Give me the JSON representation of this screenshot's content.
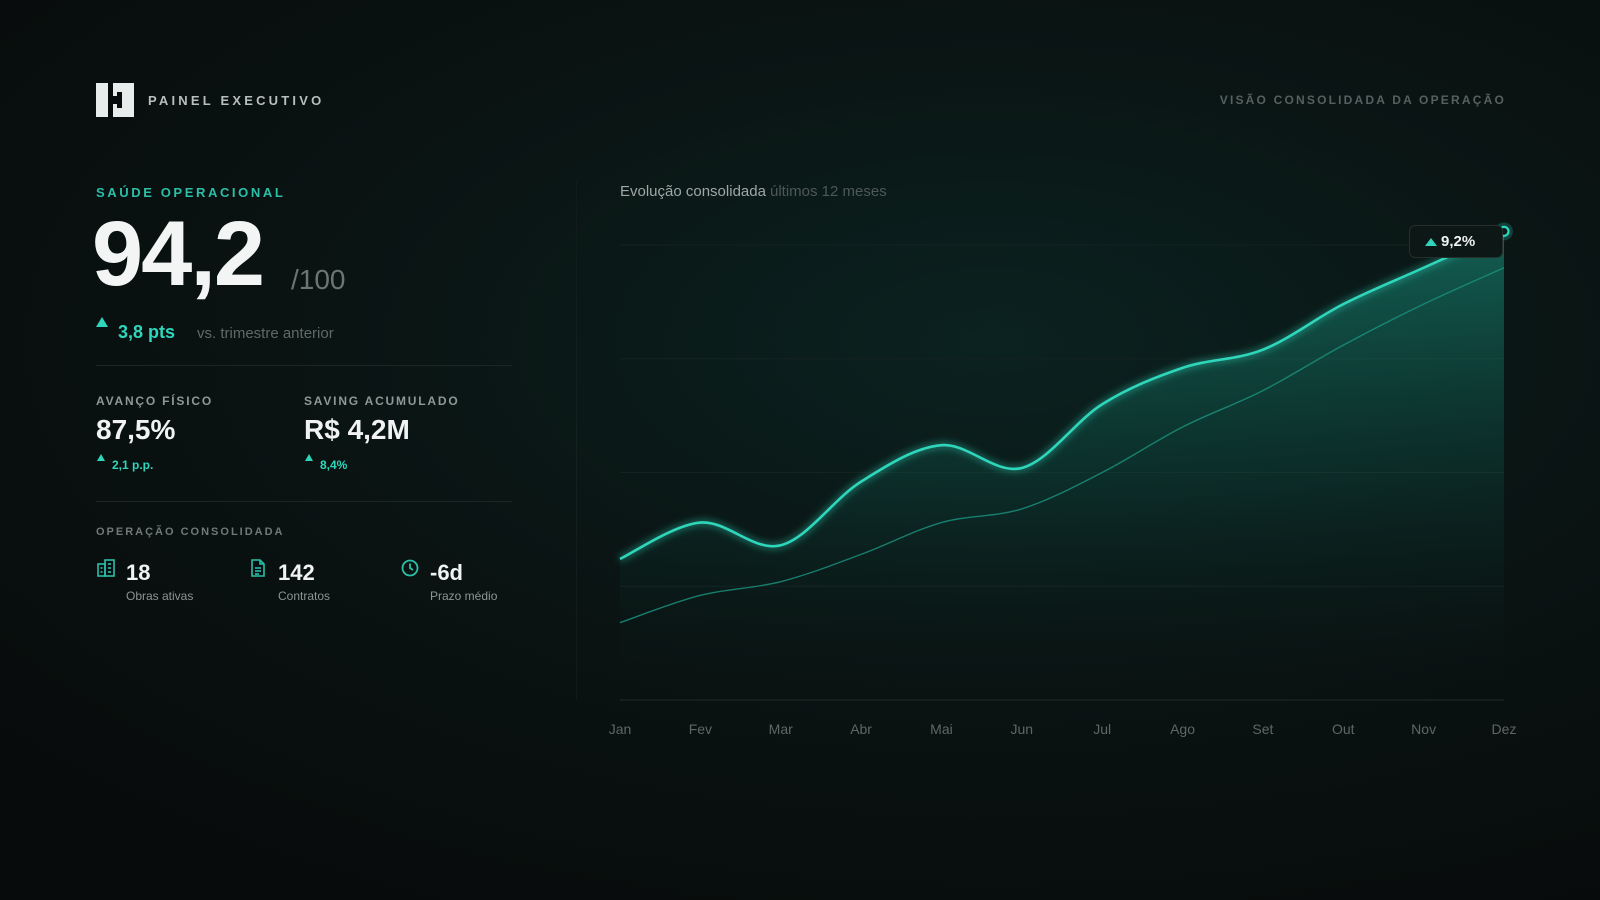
{
  "header": {
    "brand": "PAINEL EXECUTIVO",
    "subtitle": "VISÃO CONSOLIDADA DA OPERAÇÃO"
  },
  "health": {
    "label": "SAÚDE OPERACIONAL",
    "score": "94,2",
    "max": "/100",
    "delta": "3,8 pts",
    "delta_note": "vs. trimestre anterior"
  },
  "kpis": [
    {
      "label": "AVANÇO FÍSICO",
      "value": "87,5%",
      "delta": "2,1 p.p."
    },
    {
      "label": "SAVING ACUMULADO",
      "value": "R$ 4,2M",
      "delta": "8,4%"
    }
  ],
  "operation": {
    "label": "OPERAÇÃO CONSOLIDADA",
    "items": [
      {
        "icon": "buildings-icon",
        "value": "18",
        "caption": "Obras ativas"
      },
      {
        "icon": "document-icon",
        "value": "142",
        "caption": "Contratos"
      },
      {
        "icon": "clock-icon",
        "value": "-6d",
        "caption": "Prazo médio"
      }
    ]
  },
  "chart_header": {
    "title": "Evolução consolidada",
    "subtitle": "últimos 12 meses"
  },
  "chart_badge": "9,2%",
  "colors": {
    "accent": "#2fd6bb",
    "accent_dim": "#1a8f7c",
    "background": "#080b0b"
  },
  "chart_data": {
    "type": "area",
    "categories": [
      "Jan",
      "Fev",
      "Mar",
      "Abr",
      "Mai",
      "Jun",
      "Jul",
      "Ago",
      "Set",
      "Out",
      "Nov",
      "Dez"
    ],
    "ylim": [
      0,
      100
    ],
    "grid": true,
    "series": [
      {
        "values": [
          31,
          39,
          34,
          48,
          56,
          51,
          65,
          73,
          77,
          87,
          95,
          103
        ]
      },
      {
        "values": [
          17,
          23,
          26,
          32,
          39,
          42,
          50,
          60,
          68,
          78,
          87,
          95
        ]
      }
    ],
    "annotation": {
      "category": "Dez",
      "text": "9,2%"
    }
  }
}
